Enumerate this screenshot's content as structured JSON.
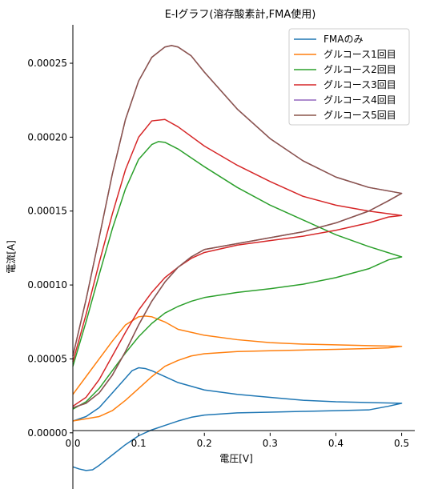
{
  "chart_data": {
    "type": "line",
    "title": "E-Iグラフ(溶存酸素計,FMA使用)",
    "xlabel": "電圧[V]",
    "ylabel": "電流[A]",
    "xlim": [
      0.0,
      0.52
    ],
    "ylim": [
      -3.8e-05,
      0.000276
    ],
    "x_ticks": [
      "0.0",
      "0.1",
      "0.2",
      "0.3",
      "0.4",
      "0.5"
    ],
    "y_ticks": [
      "0.00000",
      "0.00005",
      "0.00010",
      "0.00015",
      "0.00020",
      "0.00025"
    ],
    "grid": false,
    "legend_position": "top-right",
    "series": [
      {
        "name": "FMAのみ",
        "color": "#1f77b4",
        "forward": [
          [
            0.0,
            8e-06
          ],
          [
            0.02,
            1.1e-05
          ],
          [
            0.04,
            1.7e-05
          ],
          [
            0.06,
            2.7e-05
          ],
          [
            0.08,
            3.7e-05
          ],
          [
            0.09,
            4.2e-05
          ],
          [
            0.1,
            4.4e-05
          ],
          [
            0.11,
            4.35e-05
          ],
          [
            0.12,
            4.2e-05
          ],
          [
            0.14,
            3.8e-05
          ],
          [
            0.16,
            3.4e-05
          ],
          [
            0.2,
            2.9e-05
          ],
          [
            0.25,
            2.6e-05
          ],
          [
            0.3,
            2.4e-05
          ],
          [
            0.35,
            2.2e-05
          ],
          [
            0.4,
            2.1e-05
          ],
          [
            0.45,
            2.05e-05
          ],
          [
            0.5,
            2e-05
          ]
        ],
        "reverse": [
          [
            0.5,
            2e-05
          ],
          [
            0.48,
            1.8e-05
          ],
          [
            0.45,
            1.55e-05
          ],
          [
            0.4,
            1.5e-05
          ],
          [
            0.35,
            1.45e-05
          ],
          [
            0.3,
            1.4e-05
          ],
          [
            0.25,
            1.35e-05
          ],
          [
            0.2,
            1.2e-05
          ],
          [
            0.18,
            1.05e-05
          ],
          [
            0.16,
            8e-06
          ],
          [
            0.14,
            5e-06
          ],
          [
            0.12,
            2e-06
          ],
          [
            0.1,
            -2e-06
          ],
          [
            0.08,
            -8e-06
          ],
          [
            0.06,
            -1.5e-05
          ],
          [
            0.04,
            -2.2e-05
          ],
          [
            0.03,
            -2.5e-05
          ],
          [
            0.02,
            -2.55e-05
          ],
          [
            0.01,
            -2.45e-05
          ],
          [
            0.0,
            -2.3e-05
          ]
        ]
      },
      {
        "name": "グルコース1回目",
        "color": "#ff7f0e",
        "forward": [
          [
            0.0,
            2.6e-05
          ],
          [
            0.02,
            3.8e-05
          ],
          [
            0.04,
            5e-05
          ],
          [
            0.06,
            6.2e-05
          ],
          [
            0.08,
            7.3e-05
          ],
          [
            0.1,
            7.85e-05
          ],
          [
            0.11,
            7.9e-05
          ],
          [
            0.12,
            7.85e-05
          ],
          [
            0.14,
            7.5e-05
          ],
          [
            0.16,
            7e-05
          ],
          [
            0.2,
            6.6e-05
          ],
          [
            0.25,
            6.3e-05
          ],
          [
            0.3,
            6.1e-05
          ],
          [
            0.35,
            6e-05
          ],
          [
            0.4,
            5.95e-05
          ],
          [
            0.45,
            5.9e-05
          ],
          [
            0.5,
            5.85e-05
          ]
        ],
        "reverse": [
          [
            0.5,
            5.85e-05
          ],
          [
            0.48,
            5.75e-05
          ],
          [
            0.45,
            5.7e-05
          ],
          [
            0.4,
            5.65e-05
          ],
          [
            0.35,
            5.6e-05
          ],
          [
            0.3,
            5.55e-05
          ],
          [
            0.25,
            5.5e-05
          ],
          [
            0.2,
            5.35e-05
          ],
          [
            0.18,
            5.2e-05
          ],
          [
            0.16,
            4.9e-05
          ],
          [
            0.14,
            4.5e-05
          ],
          [
            0.12,
            3.8e-05
          ],
          [
            0.1,
            3e-05
          ],
          [
            0.08,
            2.2e-05
          ],
          [
            0.06,
            1.5e-05
          ],
          [
            0.04,
            1.1e-05
          ],
          [
            0.02,
            9.5e-06
          ],
          [
            0.0,
            8e-06
          ]
        ]
      },
      {
        "name": "グルコース2回目",
        "color": "#2ca02c",
        "forward": [
          [
            0.0,
            4.5e-05
          ],
          [
            0.02,
            7.5e-05
          ],
          [
            0.04,
            0.000107
          ],
          [
            0.06,
            0.000138
          ],
          [
            0.08,
            0.000165
          ],
          [
            0.1,
            0.000185
          ],
          [
            0.12,
            0.000195
          ],
          [
            0.13,
            0.000197
          ],
          [
            0.14,
            0.0001965
          ],
          [
            0.16,
            0.000192
          ],
          [
            0.2,
            0.00018
          ],
          [
            0.25,
            0.000166
          ],
          [
            0.3,
            0.000154
          ],
          [
            0.35,
            0.000144
          ],
          [
            0.4,
            0.000134
          ],
          [
            0.45,
            0.000126
          ],
          [
            0.5,
            0.000119
          ]
        ],
        "reverse": [
          [
            0.5,
            0.000119
          ],
          [
            0.48,
            0.000117
          ],
          [
            0.45,
            0.000111
          ],
          [
            0.4,
            0.000105
          ],
          [
            0.35,
            0.0001005
          ],
          [
            0.3,
            9.75e-05
          ],
          [
            0.25,
            9.5e-05
          ],
          [
            0.2,
            9.15e-05
          ],
          [
            0.18,
            8.9e-05
          ],
          [
            0.16,
            8.55e-05
          ],
          [
            0.14,
            8.1e-05
          ],
          [
            0.12,
            7.4e-05
          ],
          [
            0.1,
            6.5e-05
          ],
          [
            0.08,
            5.4e-05
          ],
          [
            0.06,
            4.2e-05
          ],
          [
            0.04,
            3e-05
          ],
          [
            0.02,
            2.1e-05
          ],
          [
            0.0,
            1.6e-05
          ]
        ]
      },
      {
        "name": "グルコース3回目",
        "color": "#d62728",
        "forward": [
          [
            0.0,
            4.8e-05
          ],
          [
            0.02,
            8e-05
          ],
          [
            0.04,
            0.000115
          ],
          [
            0.06,
            0.000148
          ],
          [
            0.08,
            0.000178
          ],
          [
            0.1,
            0.0002
          ],
          [
            0.12,
            0.000211
          ],
          [
            0.14,
            0.000212
          ],
          [
            0.16,
            0.000207
          ],
          [
            0.2,
            0.000194
          ],
          [
            0.25,
            0.000181
          ],
          [
            0.3,
            0.00017
          ],
          [
            0.35,
            0.00016
          ],
          [
            0.4,
            0.000154
          ],
          [
            0.45,
            0.00015
          ],
          [
            0.5,
            0.000147
          ]
        ],
        "reverse": [
          [
            0.5,
            0.000147
          ],
          [
            0.48,
            0.000146
          ],
          [
            0.45,
            0.000142
          ],
          [
            0.4,
            0.000137
          ],
          [
            0.35,
            0.000133
          ],
          [
            0.3,
            0.00013
          ],
          [
            0.25,
            0.000127
          ],
          [
            0.2,
            0.000122
          ],
          [
            0.18,
            0.000118
          ],
          [
            0.16,
            0.000112
          ],
          [
            0.14,
            0.000105
          ],
          [
            0.12,
            9.5e-05
          ],
          [
            0.1,
            8.3e-05
          ],
          [
            0.08,
            6.8e-05
          ],
          [
            0.06,
            5.2e-05
          ],
          [
            0.04,
            3.6e-05
          ],
          [
            0.02,
            2.4e-05
          ],
          [
            0.0,
            1.8e-05
          ]
        ]
      },
      {
        "name": "グルコース4回目",
        "color": "#9467bd",
        "forward": [
          [
            0.0,
            5.2e-05
          ],
          [
            0.02,
            9e-05
          ],
          [
            0.04,
            0.000132
          ],
          [
            0.06,
            0.000175
          ],
          [
            0.08,
            0.000212
          ],
          [
            0.1,
            0.000238
          ],
          [
            0.12,
            0.000254
          ],
          [
            0.14,
            0.000261
          ],
          [
            0.15,
            0.000262
          ],
          [
            0.16,
            0.000261
          ],
          [
            0.18,
            0.000255
          ],
          [
            0.2,
            0.000244
          ],
          [
            0.25,
            0.000219
          ],
          [
            0.3,
            0.000199
          ],
          [
            0.35,
            0.000184
          ],
          [
            0.4,
            0.000173
          ],
          [
            0.45,
            0.000166
          ],
          [
            0.5,
            0.000162
          ]
        ],
        "reverse": [
          [
            0.5,
            0.000162
          ],
          [
            0.48,
            0.000157
          ],
          [
            0.45,
            0.00015
          ],
          [
            0.4,
            0.000142
          ],
          [
            0.35,
            0.000136
          ],
          [
            0.3,
            0.000132
          ],
          [
            0.25,
            0.000128
          ],
          [
            0.2,
            0.000124
          ],
          [
            0.18,
            0.000119
          ],
          [
            0.16,
            0.000112
          ],
          [
            0.14,
            0.000102
          ],
          [
            0.12,
            8.9e-05
          ],
          [
            0.1,
            7.3e-05
          ],
          [
            0.08,
            5.5e-05
          ],
          [
            0.06,
            3.9e-05
          ],
          [
            0.04,
            2.7e-05
          ],
          [
            0.02,
            2e-05
          ],
          [
            0.0,
            1.7e-05
          ]
        ]
      },
      {
        "name": "グルコース5回目",
        "color": "#8c564b",
        "forward": [
          [
            0.0,
            5.2e-05
          ],
          [
            0.02,
            9e-05
          ],
          [
            0.04,
            0.000132
          ],
          [
            0.06,
            0.000175
          ],
          [
            0.08,
            0.000212
          ],
          [
            0.1,
            0.000238
          ],
          [
            0.12,
            0.000254
          ],
          [
            0.14,
            0.000261
          ],
          [
            0.15,
            0.000262
          ],
          [
            0.16,
            0.000261
          ],
          [
            0.18,
            0.000255
          ],
          [
            0.2,
            0.000244
          ],
          [
            0.25,
            0.000219
          ],
          [
            0.3,
            0.000199
          ],
          [
            0.35,
            0.000184
          ],
          [
            0.4,
            0.000173
          ],
          [
            0.45,
            0.000166
          ],
          [
            0.5,
            0.000162
          ]
        ],
        "reverse": [
          [
            0.5,
            0.000162
          ],
          [
            0.48,
            0.000157
          ],
          [
            0.45,
            0.00015
          ],
          [
            0.4,
            0.000142
          ],
          [
            0.35,
            0.000136
          ],
          [
            0.3,
            0.000132
          ],
          [
            0.25,
            0.000128
          ],
          [
            0.2,
            0.000124
          ],
          [
            0.18,
            0.000119
          ],
          [
            0.16,
            0.000112
          ],
          [
            0.14,
            0.000102
          ],
          [
            0.12,
            8.9e-05
          ],
          [
            0.1,
            7.3e-05
          ],
          [
            0.08,
            5.5e-05
          ],
          [
            0.06,
            3.9e-05
          ],
          [
            0.04,
            2.7e-05
          ],
          [
            0.02,
            2e-05
          ],
          [
            0.0,
            1.7e-05
          ]
        ]
      }
    ]
  }
}
